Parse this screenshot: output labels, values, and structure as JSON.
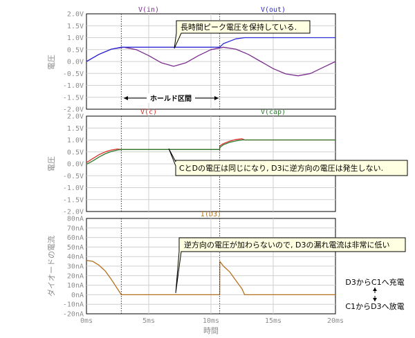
{
  "chart_data": [
    {
      "type": "line",
      "ylabel": "電圧",
      "ylim": [
        -2.0,
        2.0
      ],
      "y_ticks": [
        "2.0V",
        "1.5V",
        "1.0V",
        "0.5V",
        "0.0V",
        "-0.5V",
        "-1.0V",
        "-1.5V",
        "-2.0V"
      ],
      "series": [
        {
          "name": "V(in)",
          "color": "#7b2c8e",
          "x_ms": [
            0,
            1,
            2,
            3,
            4,
            5,
            6,
            7,
            8,
            9,
            10,
            11,
            12,
            13,
            14,
            15,
            16,
            17,
            18,
            19,
            20
          ],
          "values": [
            0.0,
            0.3,
            0.52,
            0.6,
            0.5,
            0.25,
            -0.05,
            -0.2,
            -0.05,
            0.25,
            0.5,
            0.6,
            0.52,
            0.3,
            0.0,
            -0.3,
            -0.52,
            -0.6,
            -0.5,
            -0.25,
            0.0
          ]
        },
        {
          "name": "V(out)",
          "color": "#2b2bd6",
          "x_ms": [
            0,
            1,
            2,
            2.8,
            6,
            10.7,
            11,
            12,
            12.7,
            13,
            15,
            20
          ],
          "values": [
            0.0,
            0.3,
            0.52,
            0.6,
            0.6,
            0.6,
            0.75,
            0.95,
            1.0,
            1.0,
            1.0,
            1.0
          ]
        }
      ]
    },
    {
      "type": "line",
      "ylabel": "電圧",
      "ylim": [
        -2.0,
        2.0
      ],
      "y_ticks": [
        "2.0V",
        "1.5V",
        "1.0V",
        "0.5V",
        "0.0V",
        "-0.5V",
        "-1.0V",
        "-1.5V",
        "-2.0V"
      ],
      "series": [
        {
          "name": "V(c)",
          "color": "#e0312b",
          "x_ms": [
            0,
            0.5,
            1,
            1.5,
            2,
            2.5,
            2.8,
            6,
            10.7,
            10.71,
            11,
            11.5,
            12,
            12.5,
            12.7,
            15,
            20
          ],
          "values": [
            0.05,
            0.22,
            0.38,
            0.5,
            0.58,
            0.62,
            0.6,
            0.6,
            0.6,
            0.75,
            0.85,
            0.95,
            1.02,
            1.05,
            1.0,
            1.0,
            1.0
          ]
        },
        {
          "name": "V(cap)",
          "color": "#2c7a2c",
          "x_ms": [
            0,
            0.5,
            1,
            1.5,
            2,
            2.5,
            2.8,
            6,
            10.7,
            10.71,
            11,
            11.5,
            12,
            12.5,
            12.7,
            15,
            20
          ],
          "values": [
            -0.02,
            0.12,
            0.28,
            0.42,
            0.52,
            0.58,
            0.6,
            0.6,
            0.6,
            0.68,
            0.8,
            0.9,
            0.96,
            1.0,
            1.0,
            1.0,
            1.0
          ]
        }
      ]
    },
    {
      "type": "line",
      "ylabel": "ダイオードの電流",
      "ylim": [
        -20,
        80
      ],
      "y_ticks": [
        "80nA",
        "70nA",
        "60nA",
        "50nA",
        "40nA",
        "30nA",
        "20nA",
        "10nA",
        "0nA",
        "-10nA",
        "-20nA"
      ],
      "series": [
        {
          "name": "I(D3)",
          "color": "#b5701e",
          "x_ms": [
            0,
            0.5,
            1,
            1.5,
            2,
            2.5,
            2.8,
            6,
            10.7,
            10.71,
            11,
            11.5,
            12,
            12.5,
            12.7,
            15,
            20
          ],
          "values": [
            36,
            35,
            31,
            25,
            16,
            6,
            0,
            0,
            0,
            35,
            30,
            24,
            15,
            6,
            0,
            0,
            0
          ]
        }
      ]
    }
  ],
  "x_axis": {
    "xlabel": "時間",
    "xlim_ms": [
      0,
      20
    ],
    "x_ticks": [
      "0ms",
      "5ms",
      "10ms",
      "15ms",
      "20ms"
    ]
  },
  "annotations": {
    "callout_top": "長時間ピーク電圧を保持している.",
    "hold_label": "ホールド区間",
    "callout_mid": "CとDの電圧は同じになり, D3に逆方向の電圧は発生しない.",
    "callout_bot": "逆方向の電圧が加わらないので, D3の漏れ電流は非常に低い",
    "charge_label": "D3からC1へ充電",
    "discharge_label": "C1からD3へ放電"
  },
  "hold_interval_ms": [
    2.8,
    10.7
  ]
}
